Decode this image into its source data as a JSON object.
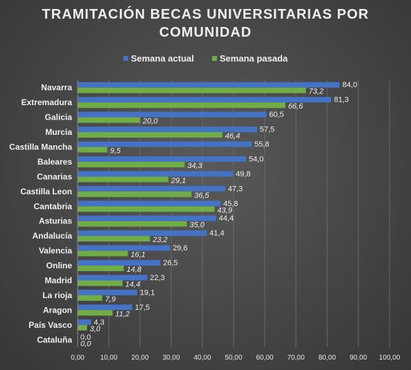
{
  "chart_data": {
    "type": "bar",
    "orientation": "horizontal",
    "title_lines": [
      "TRAMITACIÓN  BECAS UNIVERSITARIAS  POR",
      "COMUNIDAD"
    ],
    "categories": [
      "Navarra",
      "Extremadura",
      "Galicia",
      "Murcia",
      "Castilla Mancha",
      "Baleares",
      "Canarias",
      "Castilla Leon",
      "Cantabria",
      "Asturias",
      "Andalucía",
      "Valencia",
      "Online",
      "Madrid",
      "La rioja",
      "Aragon",
      "País Vasco",
      "Cataluña"
    ],
    "series": [
      {
        "name": "Semana actual",
        "color": "#4472c4",
        "values": [
          84.0,
          81.3,
          60.5,
          57.5,
          55.8,
          54.0,
          49.8,
          47.3,
          45.8,
          44.4,
          41.4,
          29.6,
          26.5,
          22.3,
          19.1,
          17.5,
          4.3,
          0.0
        ],
        "labels": [
          "84,0",
          "81,3",
          "60,5",
          "57,5",
          "55,8",
          "54,0",
          "49,8",
          "47,3",
          "45,8",
          "44,4",
          "41,4",
          "29,6",
          "26,5",
          "22,3",
          "19,1",
          "17,5",
          "4,3",
          "0,0"
        ]
      },
      {
        "name": "Semana pasada",
        "color": "#70ad47",
        "values": [
          73.2,
          66.6,
          20.0,
          46.4,
          9.5,
          34.3,
          29.1,
          36.5,
          43.9,
          35.0,
          23.2,
          16.1,
          14.8,
          14.4,
          7.9,
          11.2,
          3.0,
          0.0
        ],
        "labels": [
          "73,2",
          "66,6",
          "20,0",
          "46,4",
          "9,5",
          "34,3",
          "29,1",
          "36,5",
          "43,9",
          "35,0",
          "23,2",
          "16,1",
          "14,8",
          "14,4",
          "7,9",
          "11,2",
          "3,0",
          "0,0"
        ]
      }
    ],
    "xlim": [
      0,
      100
    ],
    "x_ticks": [
      0,
      10,
      20,
      30,
      40,
      50,
      60,
      70,
      80,
      90,
      100
    ],
    "x_tick_labels": [
      "0,00",
      "10,00",
      "20,00",
      "30,00",
      "40,00",
      "50,00",
      "60,00",
      "70,00",
      "80,00",
      "90,00",
      "100,00"
    ],
    "grid": "vertical",
    "legend_position": "top"
  }
}
